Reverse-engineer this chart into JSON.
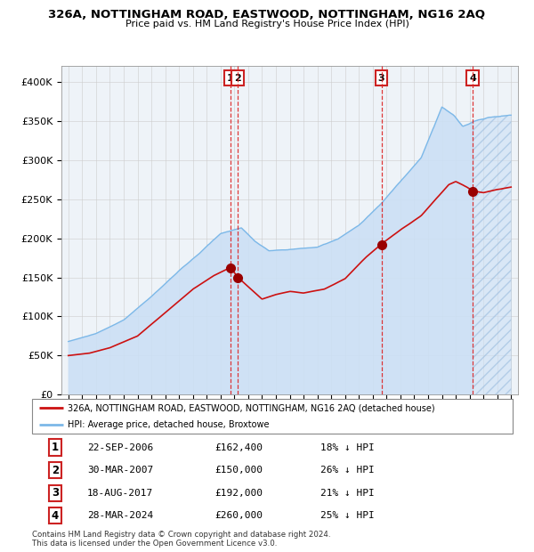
{
  "title": "326A, NOTTINGHAM ROAD, EASTWOOD, NOTTINGHAM, NG16 2AQ",
  "subtitle": "Price paid vs. HM Land Registry's House Price Index (HPI)",
  "legend_line1": "326A, NOTTINGHAM ROAD, EASTWOOD, NOTTINGHAM, NG16 2AQ (detached house)",
  "legend_line2": "HPI: Average price, detached house, Broxtowe",
  "footnote1": "Contains HM Land Registry data © Crown copyright and database right 2024.",
  "footnote2": "This data is licensed under the Open Government Licence v3.0.",
  "hpi_color": "#7cb8e8",
  "hpi_fill": "#cce0f5",
  "price_color": "#cc1111",
  "marker_color": "#990000",
  "grid_color": "#cccccc",
  "plot_bg": "#eef3f8",
  "vline_color": "#dd2222",
  "transactions": [
    {
      "num": 1,
      "date": "22-SEP-2006",
      "x": 2006.72,
      "price": 162400,
      "pct": "18%",
      "label": "1"
    },
    {
      "num": 2,
      "date": "30-MAR-2007",
      "x": 2007.25,
      "price": 150000,
      "pct": "26%",
      "label": "2"
    },
    {
      "num": 3,
      "date": "18-AUG-2017",
      "x": 2017.63,
      "price": 192000,
      "pct": "21%",
      "label": "3"
    },
    {
      "num": 4,
      "date": "28-MAR-2024",
      "x": 2024.24,
      "price": 260000,
      "pct": "25%",
      "label": "4"
    }
  ],
  "table_rows": [
    [
      "1",
      "22-SEP-2006",
      "£162,400",
      "18% ↓ HPI"
    ],
    [
      "2",
      "30-MAR-2007",
      "£150,000",
      "26% ↓ HPI"
    ],
    [
      "3",
      "18-AUG-2017",
      "£192,000",
      "21% ↓ HPI"
    ],
    [
      "4",
      "28-MAR-2024",
      "£260,000",
      "25% ↓ HPI"
    ]
  ],
  "ylim": [
    0,
    420000
  ],
  "xlim": [
    1994.5,
    2027.5
  ],
  "yticks": [
    0,
    50000,
    100000,
    150000,
    200000,
    250000,
    300000,
    350000,
    400000
  ],
  "ytick_labels": [
    "£0",
    "£50K",
    "£100K",
    "£150K",
    "£200K",
    "£250K",
    "£300K",
    "£350K",
    "£400K"
  ],
  "xtick_start": 1995,
  "xtick_end": 2027,
  "hatch_start": 2024.24
}
